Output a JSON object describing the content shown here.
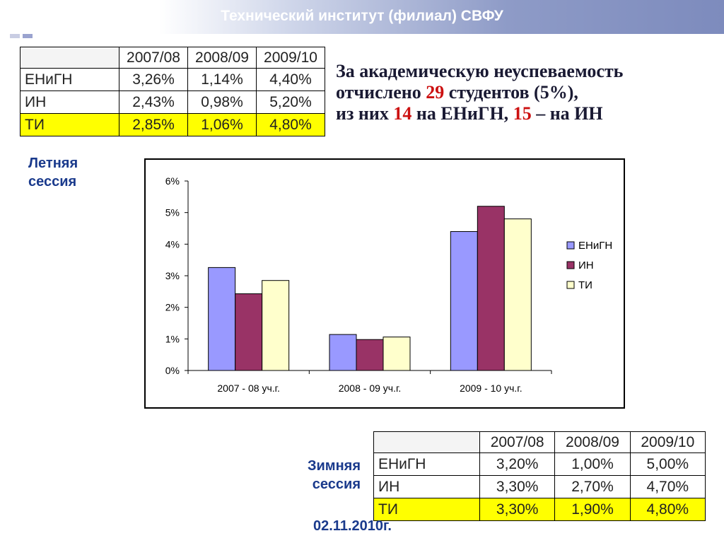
{
  "header": {
    "title": "Технический институт (филиал) СВФУ"
  },
  "summer_table": {
    "columns": [
      "2007/08",
      "2008/09",
      "2009/10"
    ],
    "rows": [
      {
        "name": "ЕНиГН",
        "values": [
          "3,26%",
          "1,14%",
          "4,40%"
        ]
      },
      {
        "name": "ИН",
        "values": [
          "2,43%",
          "0,98%",
          "5,20%"
        ]
      },
      {
        "name": "ТИ",
        "values": [
          "2,85%",
          "1,06%",
          "4,80%"
        ]
      }
    ]
  },
  "info": {
    "line1": "За академическую неуспеваемость",
    "line2_a": "отчислено ",
    "line2_num": "29",
    "line2_b": " студентов (5%),",
    "line3_a": "из них ",
    "line3_num1": "14",
    "line3_b": " на ЕНиГН, ",
    "line3_num2": "15",
    "line3_c": " – на ИН"
  },
  "labels": {
    "summer_line1": "Летняя",
    "summer_line2": "сессия",
    "winter_line1": "Зимняя",
    "winter_line2": "сессия",
    "date": "02.11.2010г."
  },
  "winter_table": {
    "columns": [
      "2007/08",
      "2008/09",
      "2009/10"
    ],
    "rows": [
      {
        "name": "ЕНиГН",
        "values": [
          "3,20%",
          "1,00%",
          "5,00%"
        ]
      },
      {
        "name": "ИН",
        "values": [
          "3,30%",
          "2,70%",
          "4,70%"
        ]
      },
      {
        "name": "ТИ",
        "values": [
          "3,30%",
          "1,90%",
          "4,80%"
        ]
      }
    ]
  },
  "chart_data": {
    "type": "bar",
    "categories": [
      "2007 - 08 уч.г.",
      "2008 - 09 уч.г.",
      "2009 - 10 уч.г."
    ],
    "series": [
      {
        "name": "ЕНиГН",
        "values": [
          3.26,
          1.14,
          4.4
        ],
        "color": "#9999ff"
      },
      {
        "name": "ИН",
        "values": [
          2.43,
          0.98,
          5.2
        ],
        "color": "#993366"
      },
      {
        "name": "ТИ",
        "values": [
          2.85,
          1.06,
          4.8
        ],
        "color": "#ffffcc"
      }
    ],
    "title": "",
    "xlabel": "",
    "ylabel": "",
    "ylim": [
      0,
      6
    ],
    "yticks": [
      0,
      1,
      2,
      3,
      4,
      5,
      6
    ],
    "ytick_labels": [
      "0%",
      "1%",
      "2%",
      "3%",
      "4%",
      "5%",
      "6%"
    ],
    "grid": false,
    "legend": "right"
  }
}
